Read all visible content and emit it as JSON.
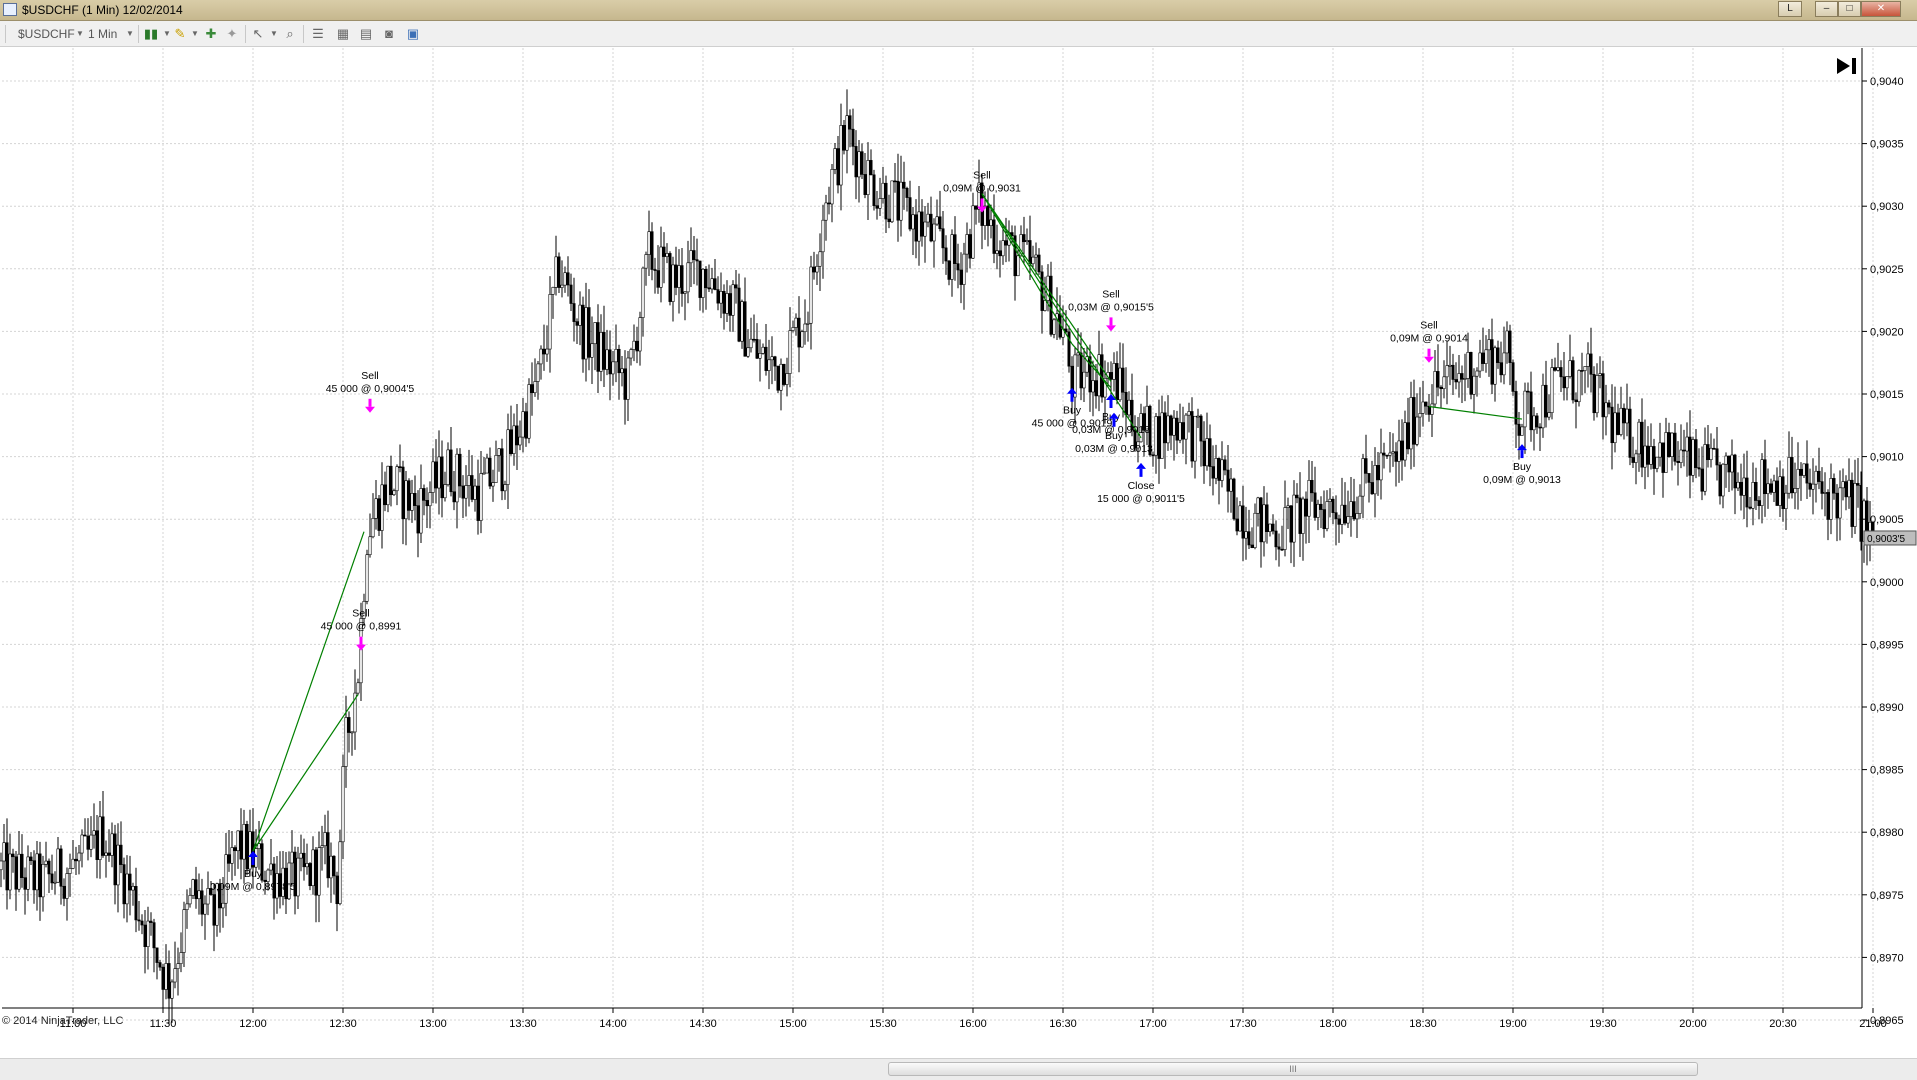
{
  "window": {
    "title": "$USDCHF (1 Min)  12/02/2014",
    "buttons": [
      "L",
      "–",
      "□",
      "✕"
    ]
  },
  "toolbar": {
    "instrument": "$USDCHF",
    "interval": "1 Min"
  },
  "copyright": "© 2014 NinjaTrader, LLC",
  "scrollbar": {
    "grip": "III"
  },
  "chart_data": {
    "type": "candlestick",
    "instrument": "$USDCHF",
    "interval": "1 Min",
    "date": "12/02/2014",
    "ylim": [
      0.89635,
      0.90405
    ],
    "y_ticks": [
      "0,8965",
      "0,8970",
      "0,8975",
      "0,8980",
      "0,8985",
      "0,8990",
      "0,8995",
      "0,9000",
      "0,9005",
      "0,9010",
      "0,9015",
      "0,9020",
      "0,9025",
      "0,9030",
      "0,9035",
      "0,9040"
    ],
    "x_ticks": [
      "11:00",
      "11:30",
      "12:00",
      "12:30",
      "13:00",
      "13:30",
      "14:00",
      "14:30",
      "15:00",
      "15:30",
      "16:00",
      "16:30",
      "17:00",
      "17:30",
      "18:00",
      "18:30",
      "19:00",
      "19:30",
      "20:00",
      "20:30",
      "21:00"
    ],
    "last_price": "0,9003'5",
    "last_price_value": 0.90035,
    "price_path": [
      [
        "10:36",
        0.8977
      ],
      [
        "10:50",
        0.8976
      ],
      [
        "11:05",
        0.8978
      ],
      [
        "11:10",
        0.898
      ],
      [
        "11:18",
        0.8976
      ],
      [
        "11:25",
        0.8972
      ],
      [
        "11:32",
        0.8968
      ],
      [
        "11:40",
        0.8975
      ],
      [
        "11:47",
        0.8973
      ],
      [
        "11:55",
        0.8979
      ],
      [
        "12:05",
        0.8977
      ],
      [
        "12:15",
        0.8976
      ],
      [
        "12:25",
        0.8978
      ],
      [
        "12:28",
        0.8976
      ],
      [
        "12:31",
        0.8987
      ],
      [
        "12:35",
        0.8993
      ],
      [
        "12:38",
        0.9004
      ],
      [
        "12:45",
        0.9008
      ],
      [
        "12:55",
        0.9006
      ],
      [
        "13:05",
        0.9009
      ],
      [
        "13:15",
        0.9007
      ],
      [
        "13:25",
        0.901
      ],
      [
        "13:35",
        0.9016
      ],
      [
        "13:42",
        0.9025
      ],
      [
        "13:50",
        0.902
      ],
      [
        "14:00",
        0.9017
      ],
      [
        "14:05",
        0.9016
      ],
      [
        "14:12",
        0.9026
      ],
      [
        "14:20",
        0.9024
      ],
      [
        "14:30",
        0.9025
      ],
      [
        "14:40",
        0.9022
      ],
      [
        "14:48",
        0.9018
      ],
      [
        "14:55",
        0.9017
      ],
      [
        "15:05",
        0.9022
      ],
      [
        "15:10",
        0.903
      ],
      [
        "15:18",
        0.9036
      ],
      [
        "15:26",
        0.9032
      ],
      [
        "15:35",
        0.903
      ],
      [
        "15:45",
        0.9028
      ],
      [
        "15:55",
        0.9025
      ],
      [
        "16:02",
        0.903
      ],
      [
        "16:10",
        0.9027
      ],
      [
        "16:20",
        0.9025
      ],
      [
        "16:30",
        0.902
      ],
      [
        "16:33",
        0.9016
      ],
      [
        "16:40",
        0.9017
      ],
      [
        "16:48",
        0.9016
      ],
      [
        "16:55",
        0.9012
      ],
      [
        "17:02",
        0.9012
      ],
      [
        "17:10",
        0.9013
      ],
      [
        "17:18",
        0.901
      ],
      [
        "17:25",
        0.9007
      ],
      [
        "17:32",
        0.9005
      ],
      [
        "17:42",
        0.9004
      ],
      [
        "17:52",
        0.9006
      ],
      [
        "18:02",
        0.9006
      ],
      [
        "18:12",
        0.9008
      ],
      [
        "18:22",
        0.901
      ],
      [
        "18:30",
        0.9015
      ],
      [
        "18:40",
        0.9016
      ],
      [
        "18:50",
        0.9018
      ],
      [
        "18:58",
        0.9018
      ],
      [
        "19:02",
        0.9013
      ],
      [
        "19:08",
        0.9014
      ],
      [
        "19:15",
        0.9016
      ],
      [
        "19:25",
        0.9016
      ],
      [
        "19:35",
        0.9012
      ],
      [
        "19:45",
        0.9011
      ],
      [
        "19:55",
        0.901
      ],
      [
        "20:02",
        0.9009
      ],
      [
        "20:15",
        0.9008
      ],
      [
        "20:25",
        0.9008
      ],
      [
        "20:35",
        0.9008
      ],
      [
        "20:45",
        0.9007
      ],
      [
        "20:55",
        0.9006
      ],
      [
        "21:00",
        0.9003
      ]
    ],
    "executions": [
      {
        "side": "Buy",
        "time": "12:00",
        "price": 0.89785,
        "label": "Buy",
        "detail": "0,09M @ 0,8978'5"
      },
      {
        "side": "Sell",
        "time": "12:36",
        "price": 0.89945,
        "label": "Sell",
        "detail": "45 000 @ 0,8991"
      },
      {
        "side": "Sell",
        "time": "12:39",
        "price": 0.90135,
        "label": "Sell",
        "detail": "45 000 @ 0,9004'5"
      },
      {
        "side": "Sell",
        "time": "16:03",
        "price": 0.90295,
        "label": "Sell",
        "detail": "0,09M @ 0,9031"
      },
      {
        "side": "Buy",
        "time": "16:33",
        "price": 0.90155,
        "label": "Buy",
        "detail": "45 000 @ 0,9019"
      },
      {
        "side": "Sell",
        "time": "16:46",
        "price": 0.902,
        "label": "Sell",
        "detail": "0,03M @ 0,9015'5"
      },
      {
        "side": "Buy",
        "time": "16:46",
        "price": 0.9015,
        "label": "Buy",
        "detail": "0,03M @ 0,9016"
      },
      {
        "side": "Buy",
        "time": "16:47",
        "price": 0.90135,
        "label": "Buy",
        "detail": "0,03M @ 0,9013"
      },
      {
        "side": "Close",
        "time": "16:56",
        "price": 0.90095,
        "label": "Close",
        "detail": "15 000 @ 0,9011'5"
      },
      {
        "side": "Sell",
        "time": "18:32",
        "price": 0.90175,
        "label": "Sell",
        "detail": "0,09M @ 0,9014"
      },
      {
        "side": "Buy",
        "time": "19:03",
        "price": 0.9011,
        "label": "Buy",
        "detail": "0,09M @ 0,9013"
      }
    ],
    "trade_lines": [
      {
        "from": [
          "12:00",
          0.89785
        ],
        "to": [
          "12:37",
          0.9004
        ]
      },
      {
        "from": [
          "12:00",
          0.89785
        ],
        "to": [
          "12:35",
          0.8991
        ]
      },
      {
        "from": [
          "16:03",
          0.9031
        ],
        "to": [
          "16:33",
          0.9019
        ]
      },
      {
        "from": [
          "16:03",
          0.9031
        ],
        "to": [
          "16:46",
          0.9016
        ]
      },
      {
        "from": [
          "16:03",
          0.9031
        ],
        "to": [
          "16:56",
          0.90115
        ]
      },
      {
        "from": [
          "16:33",
          0.9019
        ],
        "to": [
          "16:46",
          0.90155
        ]
      },
      {
        "from": [
          "18:32",
          0.9014
        ],
        "to": [
          "19:03",
          0.9013
        ]
      }
    ],
    "colors": {
      "up": "#000000",
      "down": "#000000",
      "wick": "#000000",
      "trade_line": "#008000",
      "buy": "#0000ff",
      "sell": "#ff00ff",
      "grid": "#d4d4d4"
    }
  }
}
